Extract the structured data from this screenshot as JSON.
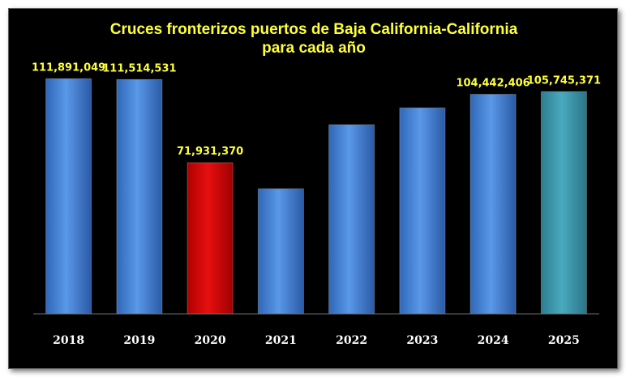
{
  "chart_data": {
    "type": "bar",
    "title_lines": [
      "Cruces fronterizos puertos de Baja California-California",
      "para cada año"
    ],
    "categories": [
      "2018",
      "2019",
      "2020",
      "2021",
      "2022",
      "2023",
      "2024",
      "2025"
    ],
    "values": [
      111891049,
      111514531,
      71931370,
      59500000,
      90000000,
      98000000,
      104442406,
      105745371
    ],
    "data_labels": [
      "111,891,049",
      "111,514,531",
      "71,931,370",
      "",
      "",
      "",
      "104,442,406",
      "105,745,371"
    ],
    "bar_colors": [
      "#3f7bd0",
      "#3f7bd0",
      "#d40000",
      "#3f7bd0",
      "#3f7bd0",
      "#3f7bd0",
      "#3f7bd0",
      "#3a94a8"
    ],
    "ylim": [
      0,
      112000000
    ],
    "grid": false,
    "legend": "none"
  }
}
